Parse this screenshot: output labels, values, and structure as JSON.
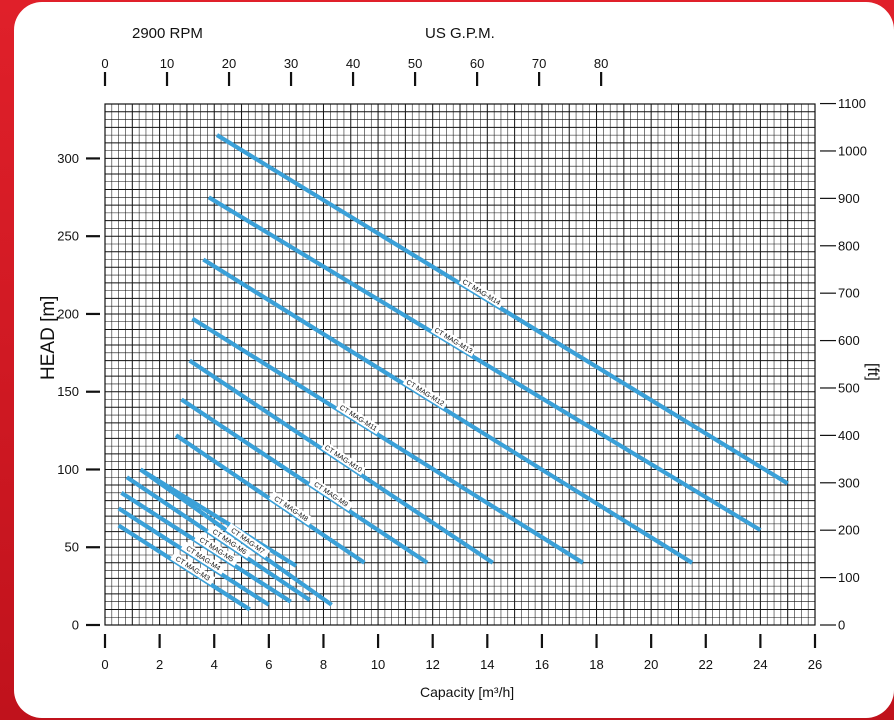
{
  "chart_data": {
    "type": "line",
    "top_left_label": "2900 RPM",
    "top_axis_title": "US G.P.M.",
    "top_ticks": [
      0,
      10,
      20,
      30,
      40,
      50,
      60,
      70,
      80
    ],
    "xlabel": "Capacity  [m³/h]",
    "x_ticks": [
      0,
      2,
      4,
      6,
      8,
      10,
      12,
      14,
      16,
      18,
      20,
      22,
      24,
      26
    ],
    "xlim": [
      0,
      26
    ],
    "ylabel": "HEAD [m]",
    "y_ticks": [
      0,
      50,
      100,
      150,
      200,
      250,
      300
    ],
    "ylim": [
      0,
      335
    ],
    "right_label": "[ft]",
    "right_ticks": [
      0,
      100,
      200,
      300,
      400,
      500,
      600,
      700,
      800,
      900,
      1000,
      1100
    ],
    "grid": true,
    "line_color": "#3aa0d8",
    "series": [
      {
        "name": "CT MAG-M3",
        "x": [
          0.5,
          5.3
        ],
        "y": [
          64,
          10
        ]
      },
      {
        "name": "CT MAG-M4",
        "x": [
          0.5,
          6.0
        ],
        "y": [
          75,
          13
        ]
      },
      {
        "name": "CT MAG-M5",
        "x": [
          0.6,
          6.8
        ],
        "y": [
          85,
          15
        ]
      },
      {
        "name": "CT MAG-M6",
        "x": [
          0.8,
          7.5
        ],
        "y": [
          95,
          16
        ]
      },
      {
        "name": "CT MAG-M7",
        "x": [
          1.3,
          8.3
        ],
        "y": [
          100,
          13
        ]
      },
      {
        "name": "CT MAG-M7",
        "x": [
          1.3,
          7.0
        ],
        "y": [
          100,
          38
        ]
      },
      {
        "name": "CT MAG-M8",
        "x": [
          2.6,
          9.5
        ],
        "y": [
          122,
          40
        ]
      },
      {
        "name": "CT MAG-M9",
        "x": [
          2.8,
          11.8
        ],
        "y": [
          145,
          40
        ]
      },
      {
        "name": "CT MAG-M10",
        "x": [
          3.1,
          14.2
        ],
        "y": [
          170,
          40
        ]
      },
      {
        "name": "CT MAG-M11",
        "x": [
          3.2,
          17.5
        ],
        "y": [
          197,
          40
        ]
      },
      {
        "name": "CT MAG-M12",
        "x": [
          3.6,
          21.5
        ],
        "y": [
          235,
          40
        ]
      },
      {
        "name": "CT MAG-M13",
        "x": [
          3.8,
          24.0
        ],
        "y": [
          275,
          61
        ]
      },
      {
        "name": "CT MAG-M14",
        "x": [
          4.1,
          25.0
        ],
        "y": [
          315,
          91
        ]
      }
    ]
  }
}
